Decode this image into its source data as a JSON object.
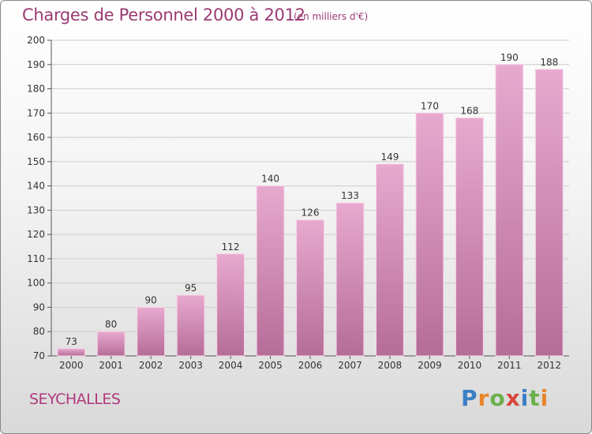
{
  "title": "Charges de Personnel 2000 à 2012",
  "subtitle": "(en milliers d'€)",
  "commune": "SEYCHALLES",
  "logo": {
    "letters": [
      "P",
      "r",
      "o",
      "x",
      "i",
      "t",
      "i"
    ],
    "colors": [
      "#3a7fc4",
      "#e8862a",
      "#6ab04c",
      "#d6463c",
      "#3a7fc4",
      "#6ab04c",
      "#e8862a"
    ]
  },
  "colors": {
    "bar_top": "#e8a9cf",
    "bar_bottom": "#b56d98",
    "grid": "#cccccc"
  },
  "chart_data": {
    "type": "bar",
    "title": "Charges de Personnel 2000 à 2012",
    "subtitle": "(en milliers d'€)",
    "categories": [
      "2000",
      "2001",
      "2002",
      "2003",
      "2004",
      "2005",
      "2006",
      "2007",
      "2008",
      "2009",
      "2010",
      "2011",
      "2012"
    ],
    "values": [
      73,
      80,
      90,
      95,
      112,
      140,
      126,
      133,
      149,
      170,
      168,
      190,
      188
    ],
    "yticks": [
      "70",
      "80",
      "90",
      "100",
      "110",
      "120",
      "130",
      "140",
      "150",
      "160",
      "170",
      "180",
      "190",
      "200"
    ],
    "ylim": [
      70,
      200
    ],
    "grid": true
  }
}
